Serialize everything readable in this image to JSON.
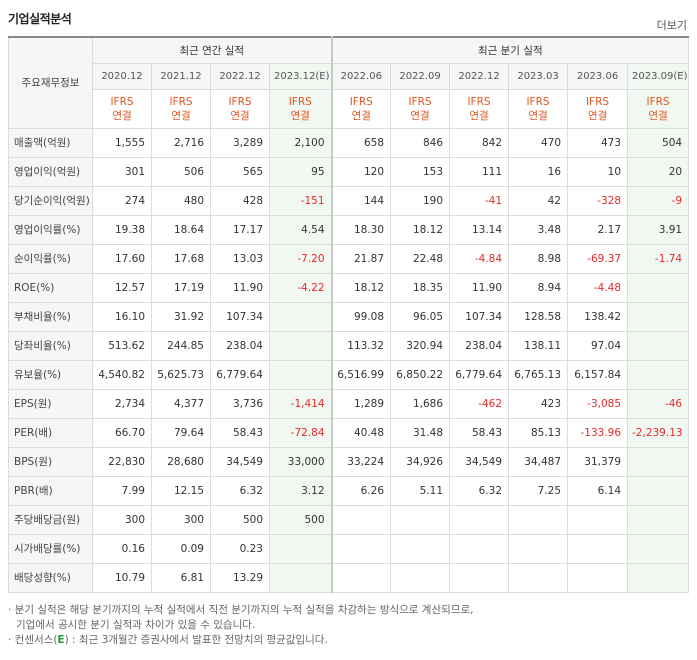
{
  "header": {
    "title": "기업실적분석",
    "more_label": "더보기"
  },
  "table": {
    "corner_label": "주요재무정보",
    "annual_label": "최근 연간 실적",
    "quarter_label": "최근 분기 실적",
    "periods": [
      "2020.12",
      "2021.12",
      "2022.12",
      "2023.12(E)",
      "2022.06",
      "2022.09",
      "2022.12",
      "2023.03",
      "2023.06",
      "2023.09(E)"
    ],
    "ifrs_line1": "IFRS",
    "ifrs_line2": "연결",
    "rows": [
      {
        "label": "매출액(억원)",
        "values": [
          "1,555",
          "2,716",
          "3,289",
          "2,100",
          "658",
          "846",
          "842",
          "470",
          "473",
          "504"
        ]
      },
      {
        "label": "영업이익(억원)",
        "values": [
          "301",
          "506",
          "565",
          "95",
          "120",
          "153",
          "111",
          "16",
          "10",
          "20"
        ]
      },
      {
        "label": "당기순이익(억원)",
        "values": [
          "274",
          "480",
          "428",
          "-151",
          "144",
          "190",
          "-41",
          "42",
          "-328",
          "-9"
        ]
      },
      {
        "label": "영업이익률(%)",
        "values": [
          "19.38",
          "18.64",
          "17.17",
          "4.54",
          "18.30",
          "18.12",
          "13.14",
          "3.48",
          "2.17",
          "3.91"
        ]
      },
      {
        "label": "순이익률(%)",
        "values": [
          "17.60",
          "17.68",
          "13.03",
          "-7.20",
          "21.87",
          "22.48",
          "-4.84",
          "8.98",
          "-69.37",
          "-1.74"
        ]
      },
      {
        "label": "ROE(%)",
        "values": [
          "12.57",
          "17.19",
          "11.90",
          "-4.22",
          "18.12",
          "18.35",
          "11.90",
          "8.94",
          "-4.48",
          ""
        ]
      },
      {
        "label": "부채비율(%)",
        "values": [
          "16.10",
          "31.92",
          "107.34",
          "",
          "99.08",
          "96.05",
          "107.34",
          "128.58",
          "138.42",
          ""
        ]
      },
      {
        "label": "당좌비율(%)",
        "values": [
          "513.62",
          "244.85",
          "238.04",
          "",
          "113.32",
          "320.94",
          "238.04",
          "138.11",
          "97.04",
          ""
        ]
      },
      {
        "label": "유보율(%)",
        "values": [
          "4,540.82",
          "5,625.73",
          "6,779.64",
          "",
          "6,516.99",
          "6,850.22",
          "6,779.64",
          "6,765.13",
          "6,157.84",
          ""
        ]
      },
      {
        "label": "EPS(원)",
        "values": [
          "2,734",
          "4,377",
          "3,736",
          "-1,414",
          "1,289",
          "1,686",
          "-462",
          "423",
          "-3,085",
          "-46"
        ]
      },
      {
        "label": "PER(배)",
        "values": [
          "66.70",
          "79.64",
          "58.43",
          "-72.84",
          "40.48",
          "31.48",
          "58.43",
          "85.13",
          "-133.96",
          "-2,239.13"
        ]
      },
      {
        "label": "BPS(원)",
        "values": [
          "22,830",
          "28,680",
          "34,549",
          "33,000",
          "33,224",
          "34,926",
          "34,549",
          "34,487",
          "31,379",
          ""
        ]
      },
      {
        "label": "PBR(배)",
        "values": [
          "7.99",
          "12.15",
          "6.32",
          "3.12",
          "6.26",
          "5.11",
          "6.32",
          "7.25",
          "6.14",
          ""
        ]
      },
      {
        "label": "주당배당금(원)",
        "values": [
          "300",
          "300",
          "500",
          "500",
          "",
          "",
          "",
          "",
          "",
          ""
        ]
      },
      {
        "label": "시가배당률(%)",
        "values": [
          "0.16",
          "0.09",
          "0.23",
          "",
          "",
          "",
          "",
          "",
          "",
          ""
        ]
      },
      {
        "label": "배당성향(%)",
        "values": [
          "10.79",
          "6.81",
          "13.29",
          "",
          "",
          "",
          "",
          "",
          "",
          ""
        ]
      }
    ]
  },
  "notes": {
    "line1": "· 분기 실적은 해당 분기까지의 누적 실적에서 직전 분기까지의 누적 실적을 차감하는 방식으로 계산되므로,",
    "line2": "기업에서 공시한 분기 실적과 차이가 있을 수 있습니다.",
    "line3_prefix": "· 컨센서스(",
    "line3_e": "E",
    "line3_suffix": ") : 최근 3개월간 증권사에서 발표한 전망치의 평균값입니다."
  },
  "colors": {
    "negative": "#e52b2b",
    "ifrs": "#e2561f",
    "estimate_bg": "#f1f8f1",
    "header_bg": "#f5f6f8"
  }
}
